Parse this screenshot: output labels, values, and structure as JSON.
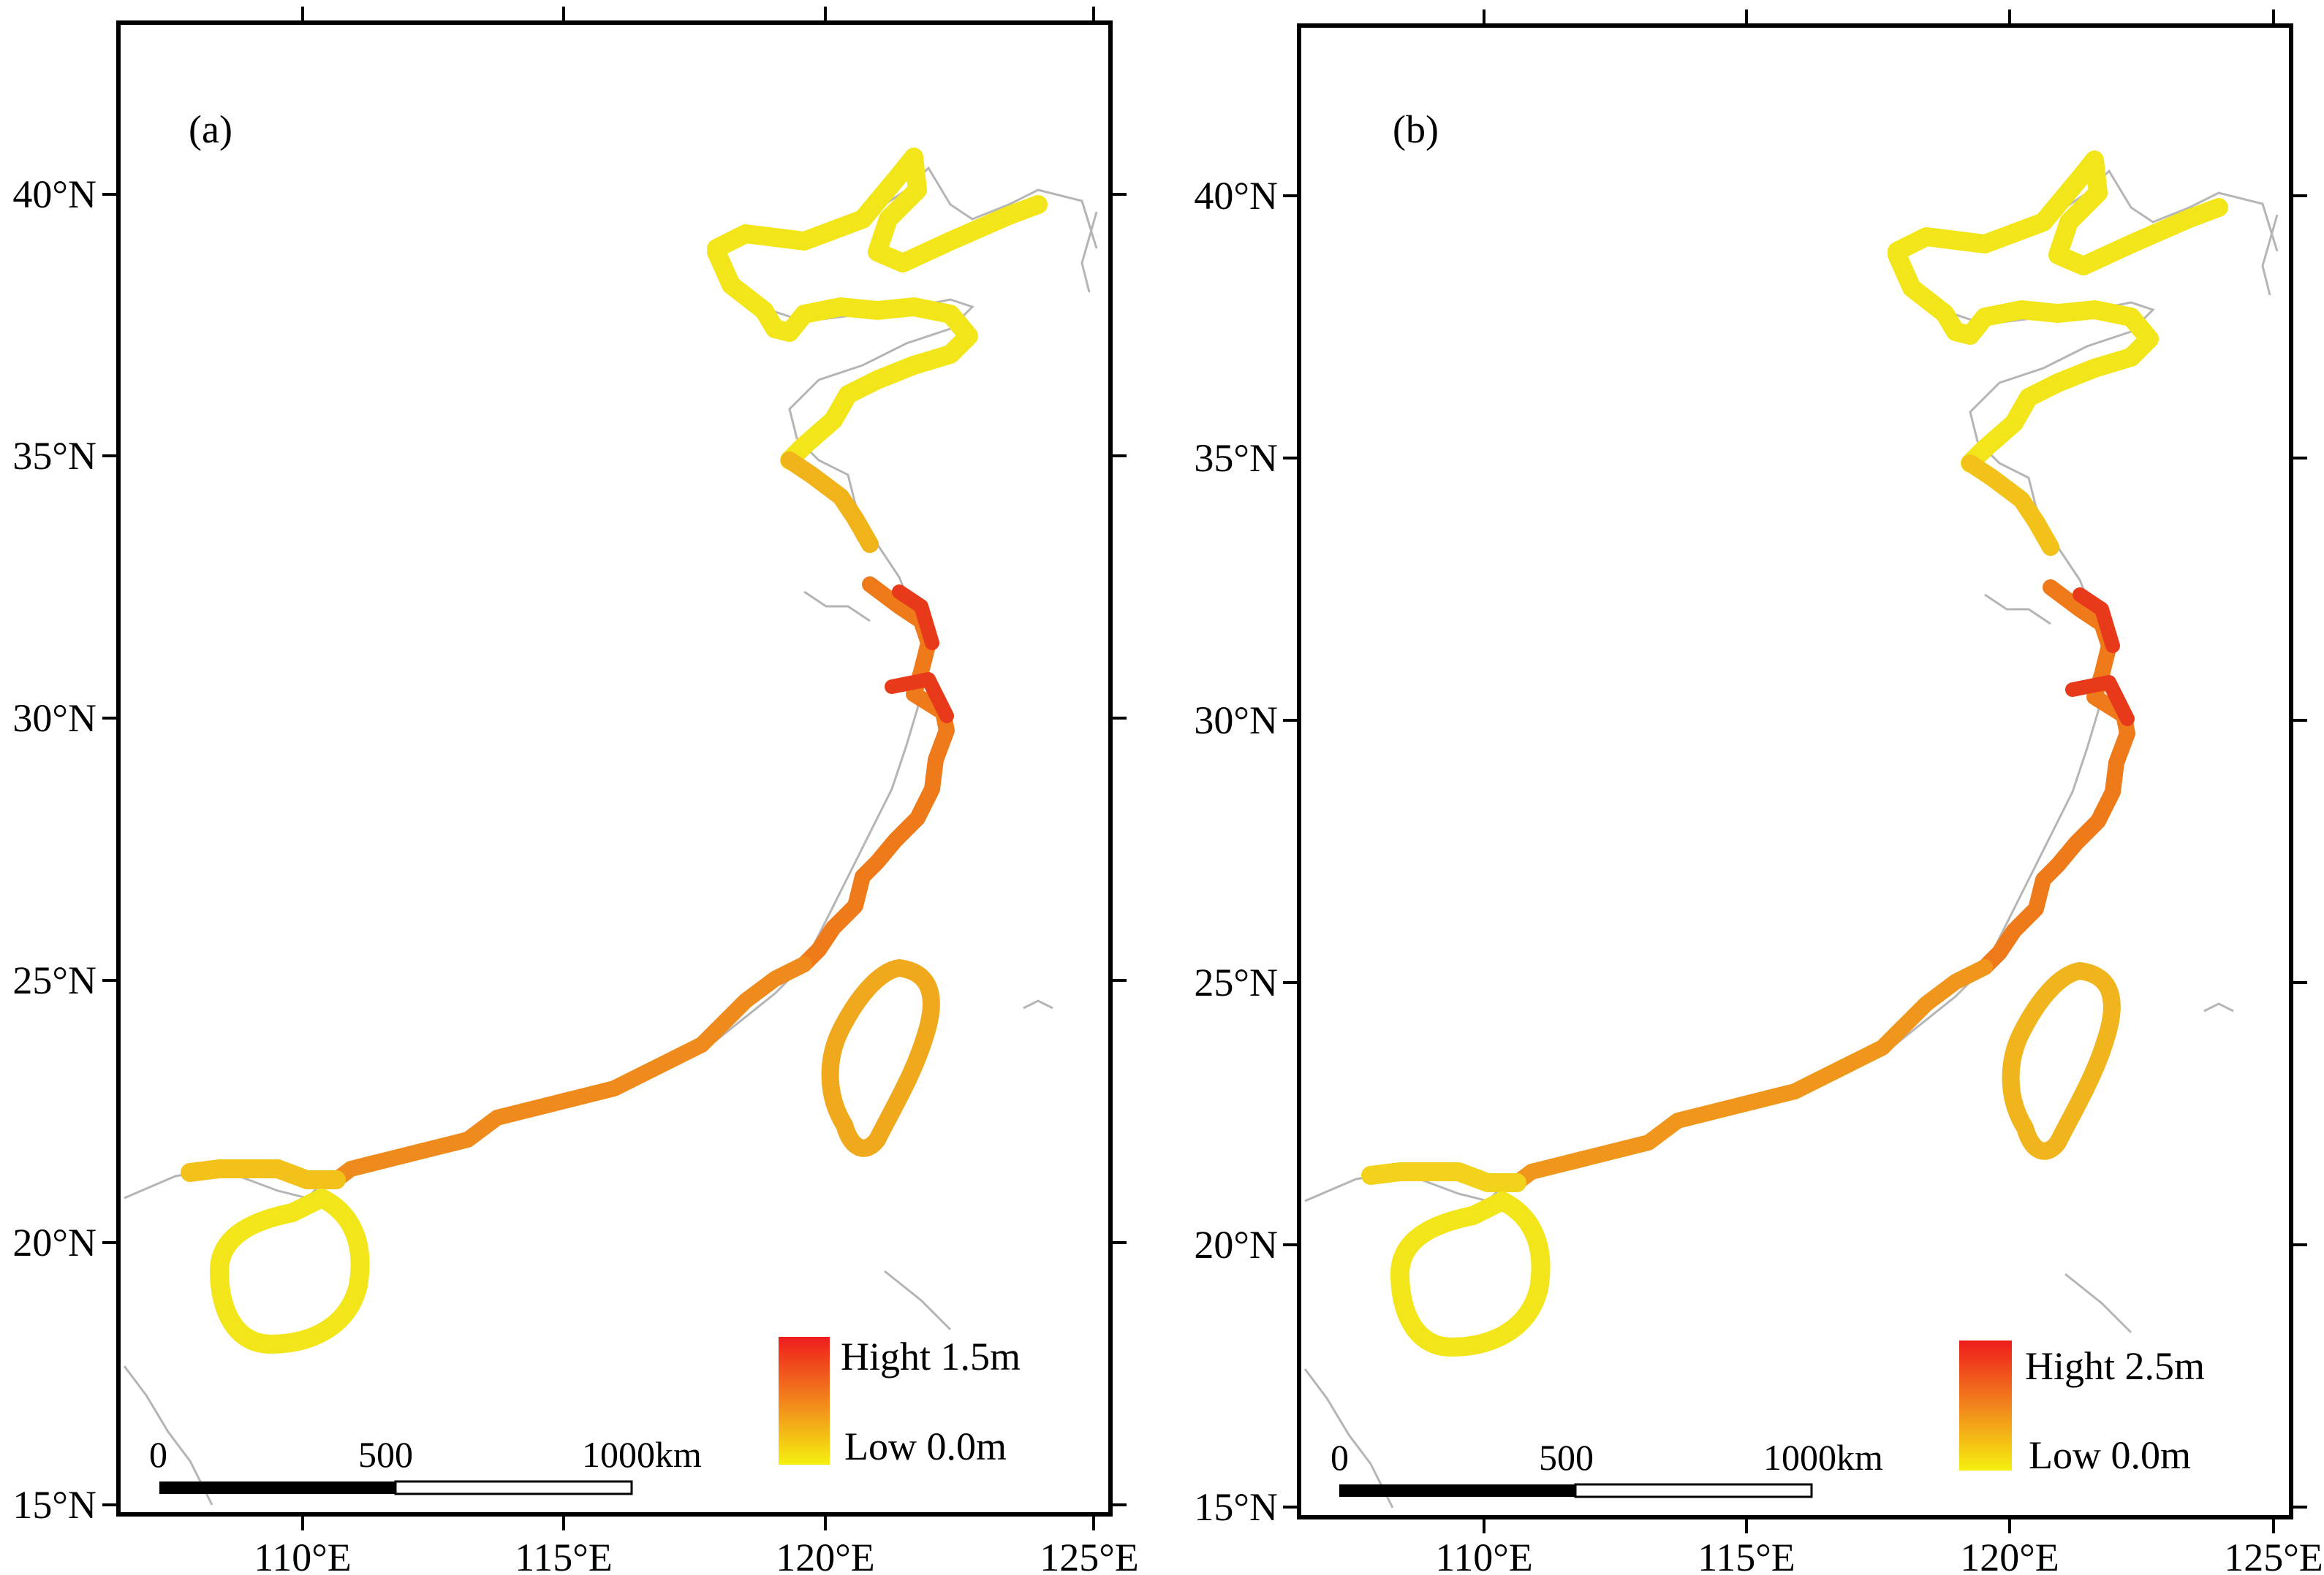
{
  "panels": [
    {
      "id": "a",
      "label": "(a)",
      "legend": {
        "high": "Hight 1.5m",
        "low": "Low 0.0m",
        "high_color": "#ee1c1c",
        "low_color": "#f5f00f"
      },
      "scale": {
        "zero": "0",
        "mid": "500",
        "end": "1000km"
      },
      "lat_labels": [
        "40°N",
        "35°N",
        "30°N",
        "25°N",
        "20°N",
        "15°N"
      ],
      "lon_labels": [
        "110°E",
        "115°E",
        "120°E",
        "125°E"
      ]
    },
    {
      "id": "b",
      "label": "(b)",
      "legend": {
        "high": "Hight 2.5m",
        "low": "Low 0.0m",
        "high_color": "#ee1c1c",
        "low_color": "#f5f00f"
      },
      "scale": {
        "zero": "0",
        "mid": "500",
        "end": "1000km"
      },
      "lat_labels": [
        "40°N",
        "35°N",
        "30°N",
        "25°N",
        "20°N",
        "15°N"
      ],
      "lon_labels": [
        "110°E",
        "115°E",
        "120°E",
        "125°E"
      ]
    }
  ]
}
